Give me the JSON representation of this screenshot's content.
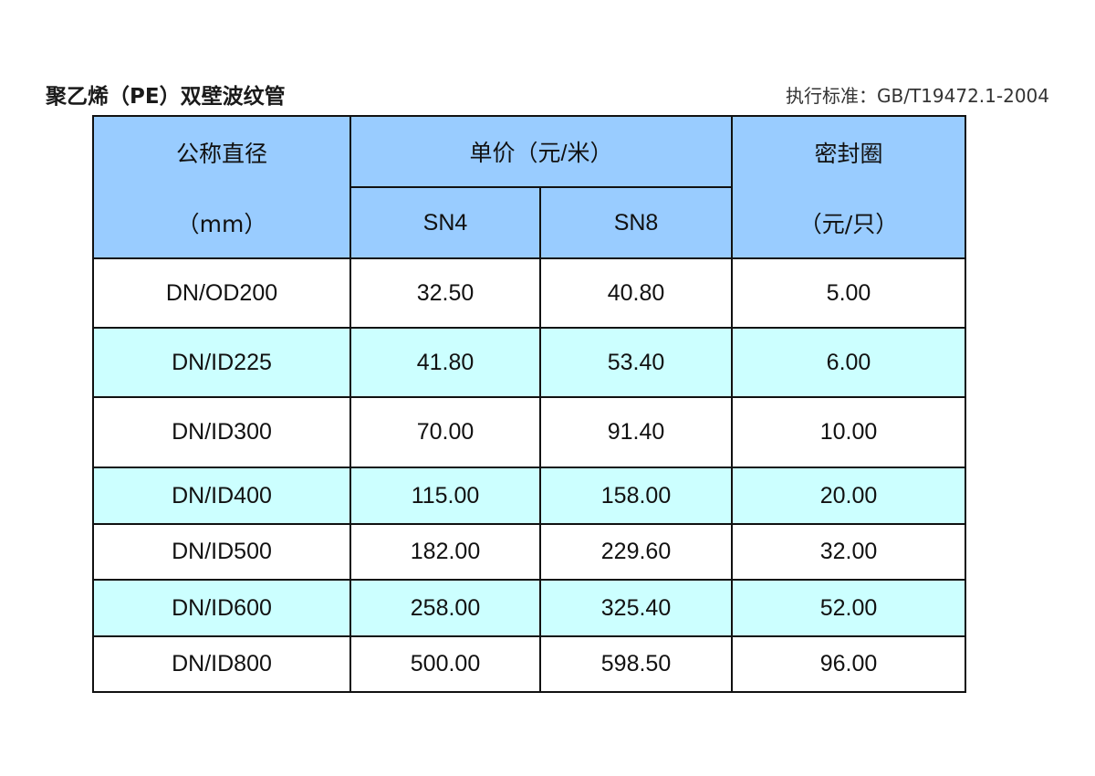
{
  "title": "聚乙烯（PE）双壁波纹管",
  "standard": "执行标准：GB/T19472.1-2004",
  "colors": {
    "header_bg": "#99ccff",
    "alt_row_bg": "#ccffff",
    "border": "#111111"
  },
  "table": {
    "headers": {
      "diameter": "公称直径",
      "diameter_unit": "（mm）",
      "price": "单价（元/米）",
      "sn4": "SN4",
      "sn8": "SN8",
      "seal": "密封圈",
      "seal_unit": "（元/只）"
    },
    "rows": [
      [
        "DN/OD200",
        "32.50",
        "40.80",
        "5.00"
      ],
      [
        "DN/ID225",
        "41.80",
        "53.40",
        "6.00"
      ],
      [
        "DN/ID300",
        "70.00",
        "91.40",
        "10.00"
      ],
      [
        "DN/ID400",
        "115.00",
        "158.00",
        "20.00"
      ],
      [
        "DN/ID500",
        "182.00",
        "229.60",
        "32.00"
      ],
      [
        "DN/ID600",
        "258.00",
        "325.40",
        "52.00"
      ],
      [
        "DN/ID800",
        "500.00",
        "598.50",
        "96.00"
      ]
    ]
  }
}
